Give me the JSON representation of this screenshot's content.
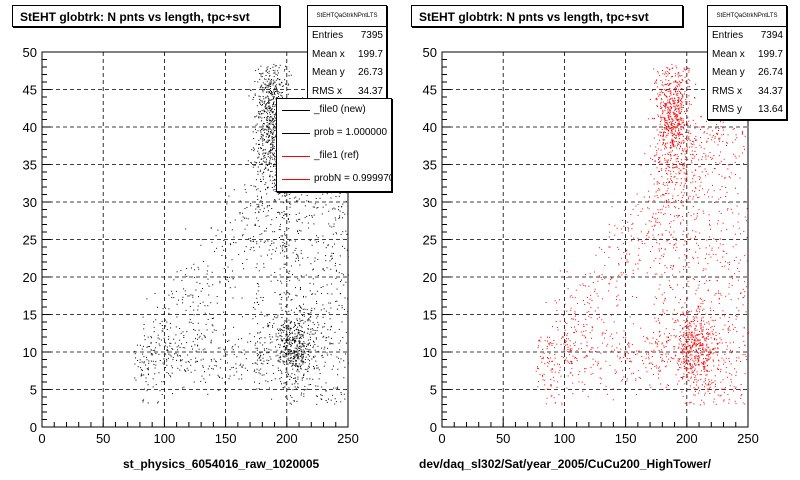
{
  "chart_data": [
    {
      "type": "scatter",
      "title": "StEHT globtrk: N pnts vs length, tpc+svt",
      "xlabel": "st_physics_6054016_raw_1020005",
      "ylabel": "",
      "xlim": [
        0,
        250
      ],
      "ylim": [
        0,
        50
      ],
      "x_ticks": [
        "0",
        "50",
        "100",
        "150",
        "200",
        "250"
      ],
      "y_ticks": [
        "0",
        "5",
        "10",
        "15",
        "20",
        "25",
        "30",
        "35",
        "40",
        "45",
        "50"
      ],
      "grid": true,
      "marker_color": "#000000",
      "stats": {
        "name": "StEHTQaGtrkNPntLTS",
        "entries": [
          "Entries",
          "7395"
        ],
        "mean_x": [
          "Mean x",
          "199.7"
        ],
        "mean_y": [
          "Mean y",
          "26.73"
        ],
        "rms_x": [
          "RMS x",
          "34.37"
        ]
      },
      "legend": [
        {
          "label": "_file0 (new)",
          "color": "#000000"
        },
        {
          "label": "prob = 1.000000",
          "color": "#000000"
        },
        {
          "label": "_file1 (ref)",
          "color": "#ff0000"
        },
        {
          "label": "probN = 0.999970",
          "color": "#ff0000"
        }
      ]
    },
    {
      "type": "scatter",
      "title": "StEHT globtrk: N pnts vs length, tpc+svt",
      "xlabel": "dev/daq_sl302/Sat/year_2005/CuCu200_HighTower/",
      "ylabel": "",
      "xlim": [
        0,
        250
      ],
      "ylim": [
        0,
        50
      ],
      "x_ticks": [
        "0",
        "50",
        "100",
        "150",
        "200",
        "250"
      ],
      "y_ticks": [
        "0",
        "5",
        "10",
        "15",
        "20",
        "25",
        "30",
        "35",
        "40",
        "45",
        "50"
      ],
      "grid": true,
      "marker_color": "#ff0000",
      "stats": {
        "name": "StEHTQaGtrkNPntLTS",
        "entries": [
          "Entries",
          "7394"
        ],
        "mean_x": [
          "Mean x",
          "199.7"
        ],
        "mean_y": [
          "Mean y",
          "26.74"
        ],
        "rms_x": [
          "RMS x",
          "34.37"
        ],
        "rms_y": [
          "RMS y",
          "13.64"
        ]
      }
    }
  ]
}
